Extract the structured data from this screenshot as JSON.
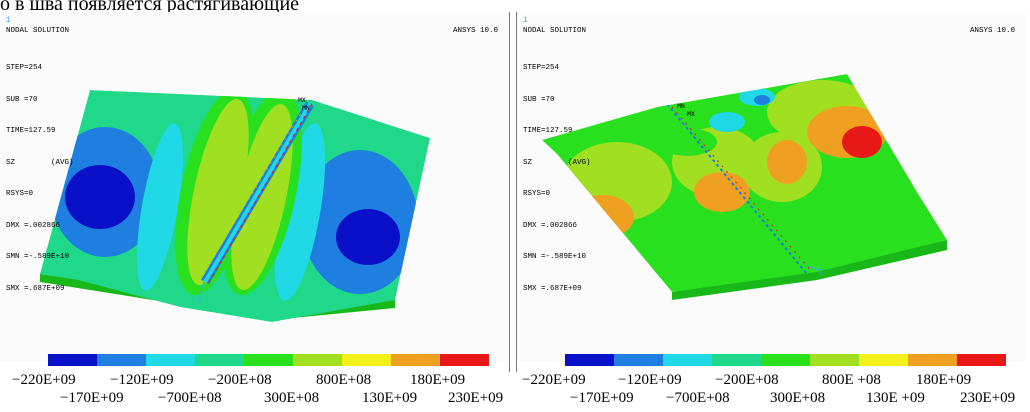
{
  "caption_top": "о в шва появляется растягивающие",
  "panels": [
    {
      "window_number": "1",
      "title": "NODAL SOLUTION",
      "brand": "ANSYS 10.0",
      "info": [
        "STEP=254",
        "SUB =70",
        "TIME=127.59",
        "SZ        (AVG)",
        "RSYS=0",
        "DMX =.002866",
        "SMN =-.589E+10",
        "SMX =.687E+09"
      ],
      "markers": [
        "MX",
        "MN"
      ]
    },
    {
      "window_number": "1",
      "title": "NODAL SOLUTION",
      "brand": "ANSYS 10.0",
      "info": [
        "STEP=254",
        "SUB =70",
        "TIME=127.59",
        "SZ        (AVG)",
        "RSYS=0",
        "DMX =.002866",
        "SMN =-.589E+10",
        "SMX =.687E+09"
      ],
      "markers": [
        "MN",
        "MX"
      ]
    }
  ],
  "legend": {
    "colors": [
      "#0a10c8",
      "#1e7fe0",
      "#20d8e6",
      "#20d88a",
      "#28e01e",
      "#a0e020",
      "#f2f21a",
      "#f0a020",
      "#e81818"
    ],
    "labels_top": [
      "−220E+09",
      "−120E+09",
      "−200E+08",
      "800E+08",
      "180E+09"
    ],
    "labels_bottom": [
      "−170E+09",
      "−700E+08",
      "300E+08",
      "130E+09",
      "230E+09"
    ],
    "labels_top_right": [
      "−220E+09",
      "−120E+09",
      "−200E+08",
      "800E +08",
      "180E+09"
    ],
    "labels_bottom_right": [
      "−170E+09",
      "−700E+08",
      "300E+08",
      "130E +09",
      "230E+09"
    ]
  }
}
